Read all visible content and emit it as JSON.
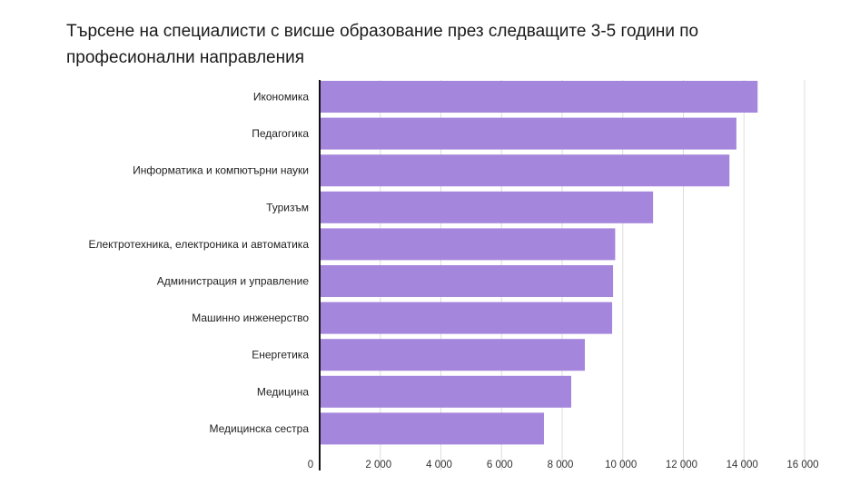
{
  "chart_data": {
    "type": "bar",
    "orientation": "horizontal",
    "title": "Търсене на специалисти с висше образование през следващите 3-5 години по професионални направления",
    "xlabel": "",
    "ylabel": "",
    "categories": [
      "Икономика",
      "Педагогика",
      "Информатика и компютърни науки",
      "Туризъм",
      "Електротехника, електроника и автоматика",
      "Администрация и управление",
      "Машинно инженерство",
      "Енергетика",
      "Медицина",
      "Медицинска сестра"
    ],
    "values": [
      14450,
      13750,
      13520,
      11000,
      9750,
      9680,
      9650,
      8750,
      8300,
      7400
    ],
    "xlim": [
      0,
      16000
    ],
    "ticks": [
      0,
      2000,
      4000,
      6000,
      8000,
      10000,
      12000,
      14000,
      16000
    ],
    "tick_labels": [
      "0",
      "2 000",
      "4 000",
      "6 000",
      "8 000",
      "10 000",
      "12 000",
      "14 000",
      "16 000"
    ],
    "grid": true,
    "legend": "none",
    "bar_color": "#a586dd",
    "grid_color": "#dddddd",
    "axis_color": "#111111"
  }
}
